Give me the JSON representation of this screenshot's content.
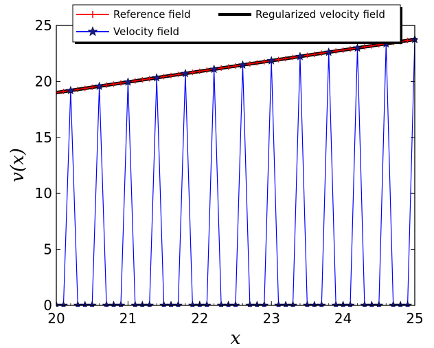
{
  "chart_data": {
    "type": "line",
    "xlabel": "x",
    "ylabel": "v(x)",
    "xlim": [
      20,
      25
    ],
    "ylim": [
      0,
      25
    ],
    "xticks": [
      "20",
      "21",
      "22",
      "23",
      "24",
      "25"
    ],
    "yticks": [
      "0",
      "5",
      "10",
      "15",
      "20",
      "25"
    ],
    "grid": false,
    "legend_position": "top",
    "reference": {
      "x_start": 20,
      "y_start": 19.0,
      "slope": 0.95
    },
    "series": [
      {
        "name": "Reference field",
        "color": "#ff0000",
        "marker": "plus",
        "x": [
          20.0,
          20.1,
          20.2,
          20.3,
          20.4,
          20.5,
          20.6,
          20.7,
          20.8,
          20.9,
          21.0,
          21.1,
          21.2,
          21.3,
          21.4,
          21.5,
          21.6,
          21.7,
          21.8,
          21.9,
          22.0,
          22.1,
          22.2,
          22.3,
          22.4,
          22.5,
          22.6,
          22.7,
          22.8,
          22.9,
          23.0,
          23.1,
          23.2,
          23.3,
          23.4,
          23.5,
          23.6,
          23.7,
          23.8,
          23.9,
          24.0,
          24.1,
          24.2,
          24.3,
          24.4,
          24.5,
          24.6,
          24.7,
          24.8,
          24.9,
          25.0
        ],
        "y": [
          19.0,
          19.1,
          19.19,
          19.29,
          19.38,
          19.48,
          19.57,
          19.67,
          19.76,
          19.86,
          19.95,
          20.05,
          20.14,
          20.24,
          20.33,
          20.43,
          20.52,
          20.62,
          20.71,
          20.81,
          20.9,
          21.0,
          21.09,
          21.19,
          21.28,
          21.38,
          21.47,
          21.57,
          21.66,
          21.76,
          21.85,
          21.95,
          22.04,
          22.14,
          22.23,
          22.33,
          22.42,
          22.52,
          22.61,
          22.71,
          22.8,
          22.9,
          22.99,
          23.09,
          23.18,
          23.28,
          23.37,
          23.47,
          23.56,
          23.66,
          23.75
        ]
      },
      {
        "name": "Regularized velocity field",
        "color": "#000000",
        "marker": "none",
        "x": [
          20.0,
          20.5,
          21.0,
          21.5,
          22.0,
          22.5,
          23.0,
          23.5,
          24.0,
          24.5,
          25.0
        ],
        "y": [
          19.0,
          19.48,
          19.95,
          20.43,
          20.9,
          21.38,
          21.85,
          22.33,
          22.8,
          23.28,
          23.75
        ]
      },
      {
        "name": "Velocity field",
        "color": "#0000ff",
        "marker": "star",
        "x": [
          20.0,
          20.1,
          20.2,
          20.3,
          20.4,
          20.5,
          20.6,
          20.7,
          20.8,
          20.9,
          21.0,
          21.1,
          21.2,
          21.3,
          21.4,
          21.5,
          21.6,
          21.7,
          21.8,
          21.9,
          22.0,
          22.1,
          22.2,
          22.3,
          22.4,
          22.5,
          22.6,
          22.7,
          22.8,
          22.9,
          23.0,
          23.1,
          23.2,
          23.3,
          23.4,
          23.5,
          23.6,
          23.7,
          23.8,
          23.9,
          24.0,
          24.1,
          24.2,
          24.3,
          24.4,
          24.5,
          24.6,
          24.7,
          24.8,
          24.9,
          25.0
        ],
        "y": [
          0,
          0,
          19.19,
          0,
          0,
          0,
          19.57,
          0,
          0,
          0,
          19.95,
          0,
          0,
          0,
          20.33,
          0,
          0,
          0,
          20.71,
          0,
          0,
          0,
          21.09,
          0,
          0,
          0,
          21.47,
          0,
          0,
          0,
          21.85,
          0,
          0,
          0,
          22.23,
          0,
          0,
          0,
          22.61,
          0,
          0,
          0,
          22.99,
          0,
          0,
          0,
          23.37,
          0,
          0,
          0,
          23.75
        ]
      }
    ],
    "legend": [
      {
        "label": "Reference field",
        "color": "#ff0000",
        "marker": "plus"
      },
      {
        "label": "Velocity field",
        "color": "#0000ff",
        "marker": "star"
      },
      {
        "label": "Regularized velocity field",
        "color": "#000000",
        "marker": "none"
      }
    ]
  }
}
